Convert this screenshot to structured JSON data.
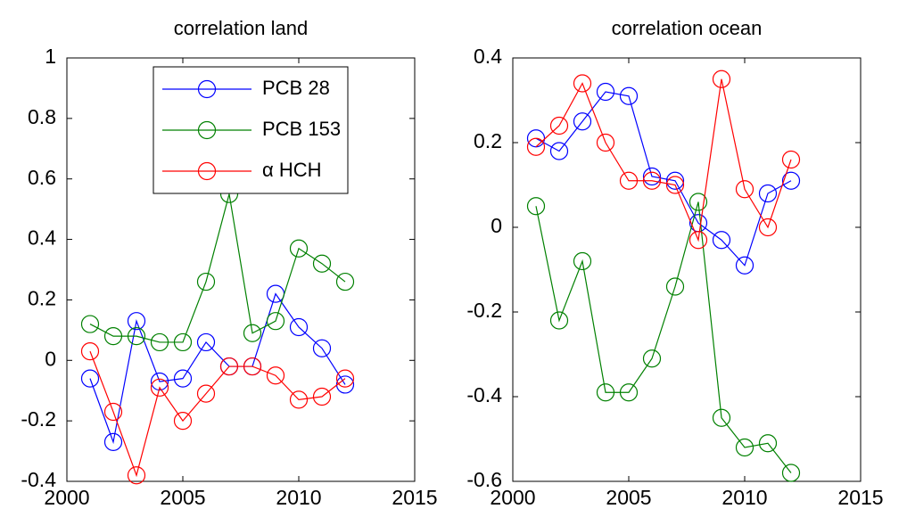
{
  "chart_data": [
    {
      "type": "line",
      "title": "correlation land",
      "x": [
        2001,
        2002,
        2003,
        2004,
        2005,
        2006,
        2007,
        2008,
        2009,
        2010,
        2011,
        2012
      ],
      "xlim": [
        2000,
        2015
      ],
      "xticks": [
        2000,
        2005,
        2010,
        2015
      ],
      "ylim": [
        -0.4,
        1
      ],
      "yticks": [
        -0.4,
        -0.2,
        0,
        0.2,
        0.4,
        0.6,
        0.8,
        1
      ],
      "grid": false,
      "legend": "upper right",
      "series": [
        {
          "name": "PCB 28",
          "color": "#0000ff",
          "values": [
            -0.06,
            -0.27,
            0.13,
            -0.07,
            -0.06,
            0.06,
            -0.02,
            -0.02,
            0.22,
            0.11,
            0.04,
            -0.08
          ]
        },
        {
          "name": "PCB 153",
          "color": "#008000",
          "values": [
            0.12,
            0.08,
            0.08,
            0.06,
            0.06,
            0.26,
            0.55,
            0.09,
            0.13,
            0.37,
            0.32,
            0.26
          ]
        },
        {
          "name": "α HCH",
          "color": "#ff0000",
          "values": [
            0.03,
            -0.17,
            -0.38,
            -0.09,
            -0.2,
            -0.11,
            -0.02,
            -0.02,
            -0.05,
            -0.13,
            -0.12,
            -0.06
          ]
        }
      ]
    },
    {
      "type": "line",
      "title": "correlation ocean",
      "x": [
        2001,
        2002,
        2003,
        2004,
        2005,
        2006,
        2007,
        2008,
        2009,
        2010,
        2011,
        2012
      ],
      "xlim": [
        2000,
        2015
      ],
      "xticks": [
        2000,
        2005,
        2010,
        2015
      ],
      "ylim": [
        -0.6,
        0.4
      ],
      "yticks": [
        -0.6,
        -0.4,
        -0.2,
        0,
        0.2,
        0.4
      ],
      "grid": false,
      "series": [
        {
          "color": "#0000ff",
          "values": [
            0.21,
            0.18,
            0.25,
            0.32,
            0.31,
            0.12,
            0.11,
            0.01,
            -0.03,
            -0.09,
            0.08,
            0.11
          ]
        },
        {
          "color": "#008000",
          "values": [
            0.05,
            -0.22,
            -0.08,
            -0.39,
            -0.39,
            -0.31,
            -0.14,
            0.06,
            -0.45,
            -0.52,
            -0.51,
            -0.58
          ]
        },
        {
          "color": "#ff0000",
          "values": [
            0.19,
            0.24,
            0.34,
            0.2,
            0.11,
            0.11,
            0.1,
            -0.03,
            0.35,
            0.09,
            0.0,
            0.16
          ]
        }
      ]
    }
  ]
}
